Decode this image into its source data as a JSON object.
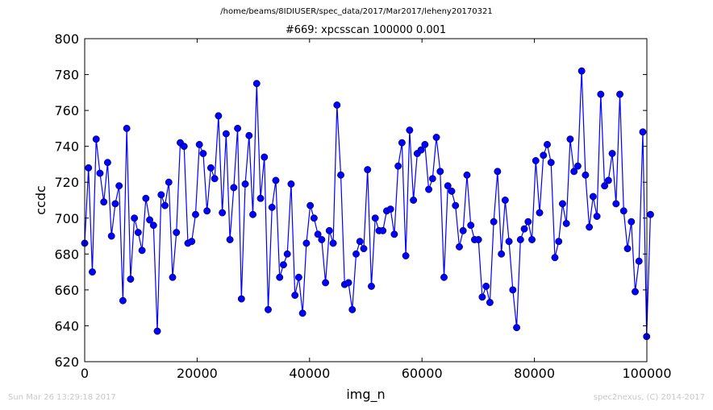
{
  "header": {
    "path": "/home/beams/8IDIUSER/spec_data/2017/Mar2017/leheny20170321",
    "scan_title": "#669: xpcsscan 100000 0.001"
  },
  "footer": {
    "timestamp": "Sun Mar 26 13:29:18 2017",
    "credit": "spec2nexus, (C) 2014-2017"
  },
  "colors": {
    "series": "#0000ff",
    "marker": "#0000ff",
    "axes": "#000000"
  },
  "chart_data": {
    "type": "line",
    "markers": true,
    "title": "#669: xpcsscan 100000 0.001",
    "xlabel": "img_n",
    "ylabel": "ccdc",
    "xlim": [
      0,
      100000
    ],
    "ylim": [
      620,
      800
    ],
    "xticks": [
      0,
      20000,
      40000,
      60000,
      80000,
      100000
    ],
    "yticks": [
      620,
      640,
      660,
      680,
      700,
      720,
      740,
      760,
      780,
      800
    ],
    "grid": false,
    "x_start": 0,
    "x_step": 680,
    "y": [
      686,
      728,
      670,
      744,
      725,
      709,
      731,
      690,
      708,
      718,
      654,
      750,
      666,
      700,
      692,
      682,
      711,
      699,
      696,
      637,
      713,
      707,
      720,
      667,
      692,
      742,
      740,
      686,
      687,
      702,
      741,
      736,
      704,
      728,
      722,
      757,
      703,
      747,
      688,
      717,
      750,
      655,
      719,
      746,
      702,
      775,
      711,
      734,
      649,
      706,
      721,
      667,
      674,
      680,
      719,
      657,
      667,
      647,
      686,
      707,
      700,
      691,
      688,
      664,
      693,
      686,
      763,
      724,
      663,
      664,
      649,
      680,
      687,
      683,
      727,
      662,
      700,
      693,
      693,
      704,
      705,
      691,
      729,
      742,
      679,
      749,
      710,
      736,
      738,
      741,
      716,
      722,
      745,
      726,
      667,
      718,
      715,
      707,
      684,
      693,
      724,
      696,
      688,
      688,
      656,
      662,
      653,
      698,
      726,
      680,
      710,
      687,
      660,
      639,
      688,
      694,
      698,
      688,
      732,
      703,
      735,
      741,
      731,
      678,
      687,
      708,
      697,
      744,
      726,
      729,
      782,
      724,
      695,
      712,
      701,
      769,
      718,
      721,
      736,
      708,
      769,
      704,
      683,
      698,
      659,
      676,
      748,
      634,
      702
    ]
  }
}
